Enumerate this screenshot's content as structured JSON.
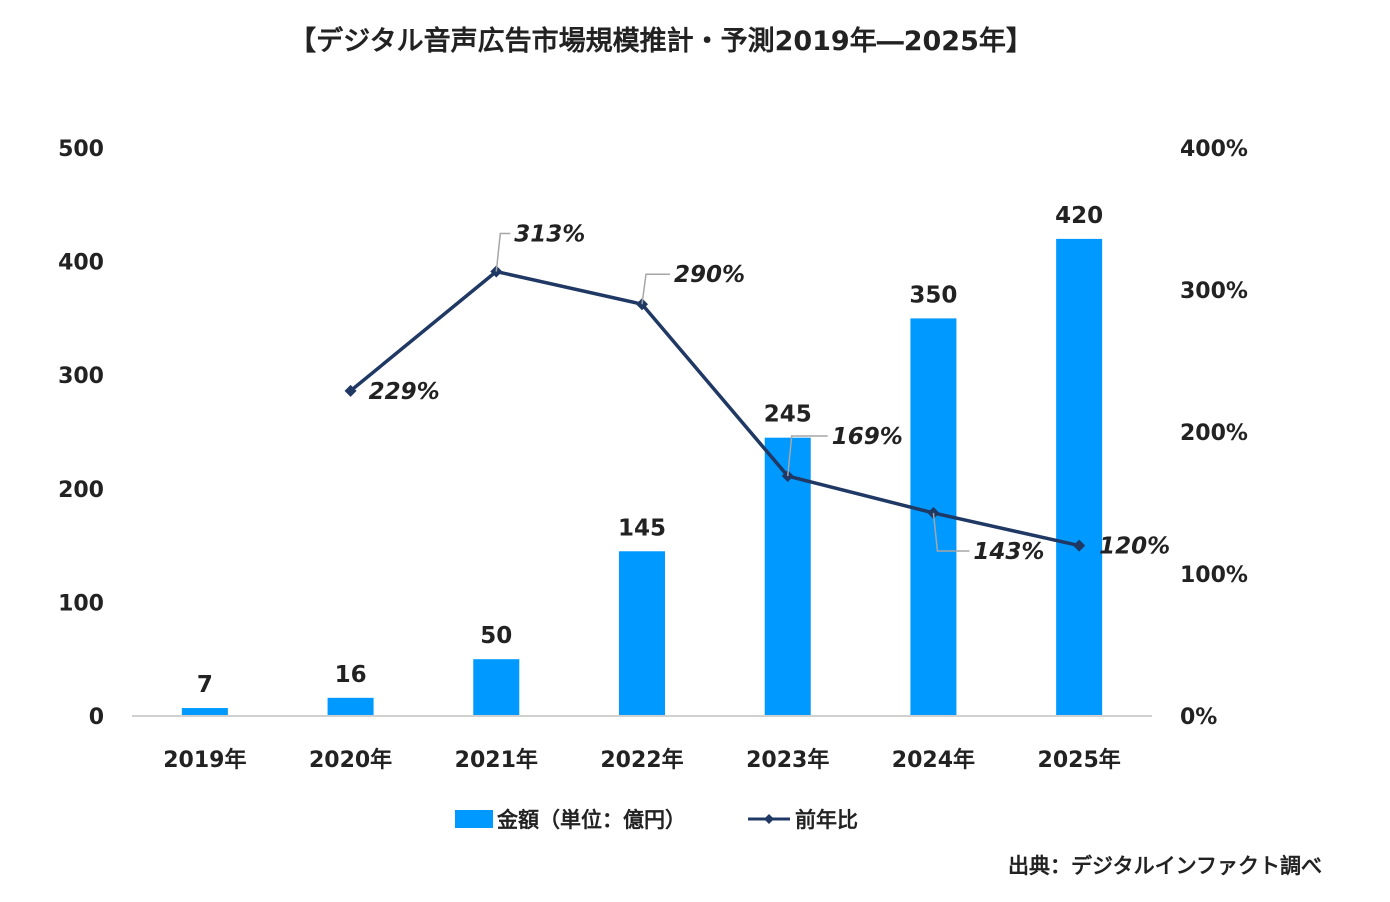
{
  "chart_data": {
    "type": "bar",
    "title": "【デジタル音声広告市場規模推計・予測2019年―2025年】",
    "categories": [
      "2019年",
      "2020年",
      "2021年",
      "2022年",
      "2023年",
      "2024年",
      "2025年"
    ],
    "series": [
      {
        "name": "金額（単位：億円）",
        "type": "bar",
        "axis": "left",
        "color": "#0099ff",
        "values": [
          7,
          16,
          50,
          145,
          245,
          350,
          420
        ],
        "labels": [
          "7",
          "16",
          "50",
          "145",
          "245",
          "350",
          "420"
        ]
      },
      {
        "name": "前年比",
        "type": "line",
        "axis": "right",
        "color": "#1f3864",
        "values": [
          null,
          229,
          313,
          290,
          169,
          143,
          120
        ],
        "labels": [
          "",
          "229%",
          "313%",
          "290%",
          "169%",
          "143%",
          "120%"
        ]
      }
    ],
    "y_left": {
      "range": [
        0,
        500
      ],
      "ticks": [
        0,
        100,
        200,
        300,
        400,
        500
      ],
      "tick_labels": [
        "0",
        "100",
        "200",
        "300",
        "400",
        "500"
      ]
    },
    "y_right": {
      "range": [
        0,
        400
      ],
      "ticks": [
        0,
        100,
        200,
        300,
        400
      ],
      "tick_labels": [
        "0%",
        "100%",
        "200%",
        "300%",
        "400%"
      ]
    },
    "grid": false,
    "legend_position": "bottom-center",
    "source": "出典：デジタルインファクト調べ"
  }
}
